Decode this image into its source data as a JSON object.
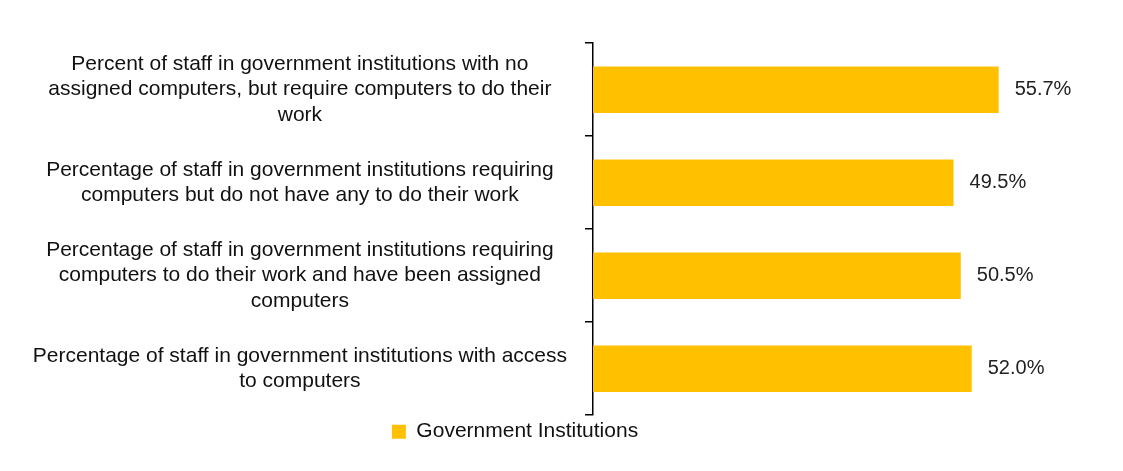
{
  "chart_data": {
    "type": "bar",
    "orientation": "horizontal",
    "categories": [
      "Percent of staff in government institutions with no assigned computers, but require computers to do their work",
      "Percentage of staff in government institutions requiring computers but do not have any to do their work",
      "Percentage of staff in government institutions requiring computers to do their work and have been assigned computers",
      "Percentage of staff in government institutions with access to computers"
    ],
    "series": [
      {
        "name": "Government Institutions",
        "color": "#ffc000",
        "values": [
          55.7,
          49.5,
          50.5,
          52.0
        ],
        "value_labels": [
          "55.7%",
          "49.5%",
          "50.5%",
          "52.0%"
        ]
      }
    ],
    "tick_labels": "y",
    "legend": "bottom"
  }
}
